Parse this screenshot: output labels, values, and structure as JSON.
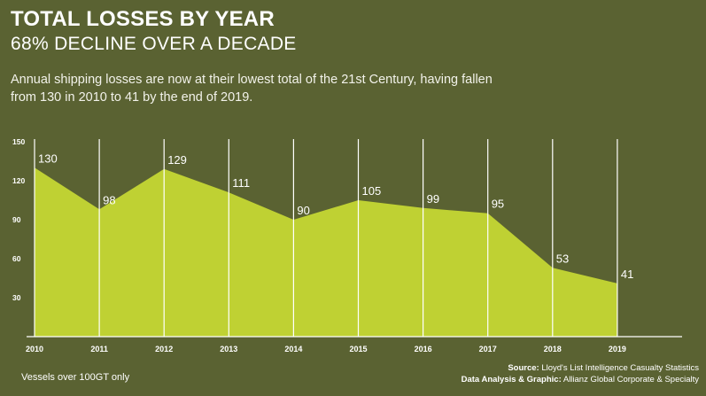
{
  "header": {
    "title": "TOTAL LOSSES BY YEAR",
    "subtitle": "68% DECLINE OVER A DECADE",
    "description": "Annual shipping losses are now at their lowest total of the 21st Century, having fallen from 130 in 2010 to 41 by the end of 2019."
  },
  "footer": {
    "note": "Vessels over 100GT only",
    "source_label": "Source:",
    "source_text": "Lloyd's List Intelligence Casualty Statistics",
    "credit_label": "Data Analysis & Graphic:",
    "credit_text": "Allianz Global Corporate & Specialty"
  },
  "chart_data": {
    "type": "area",
    "title": "TOTAL LOSSES BY YEAR",
    "xlabel": "",
    "ylabel": "",
    "categories": [
      "2010",
      "2011",
      "2012",
      "2013",
      "2014",
      "2015",
      "2016",
      "2017",
      "2018",
      "2019"
    ],
    "values": [
      130,
      98,
      129,
      111,
      90,
      105,
      99,
      95,
      53,
      41
    ],
    "y_ticks": [
      30,
      60,
      90,
      120,
      150
    ],
    "ylim": [
      0,
      150
    ],
    "grid": "vertical lines at each year",
    "data_labels": true,
    "colors": {
      "background": "#5a6232",
      "area_fill": "#bfd133",
      "gridline": "#ffffff",
      "text": "#ffffff"
    }
  }
}
